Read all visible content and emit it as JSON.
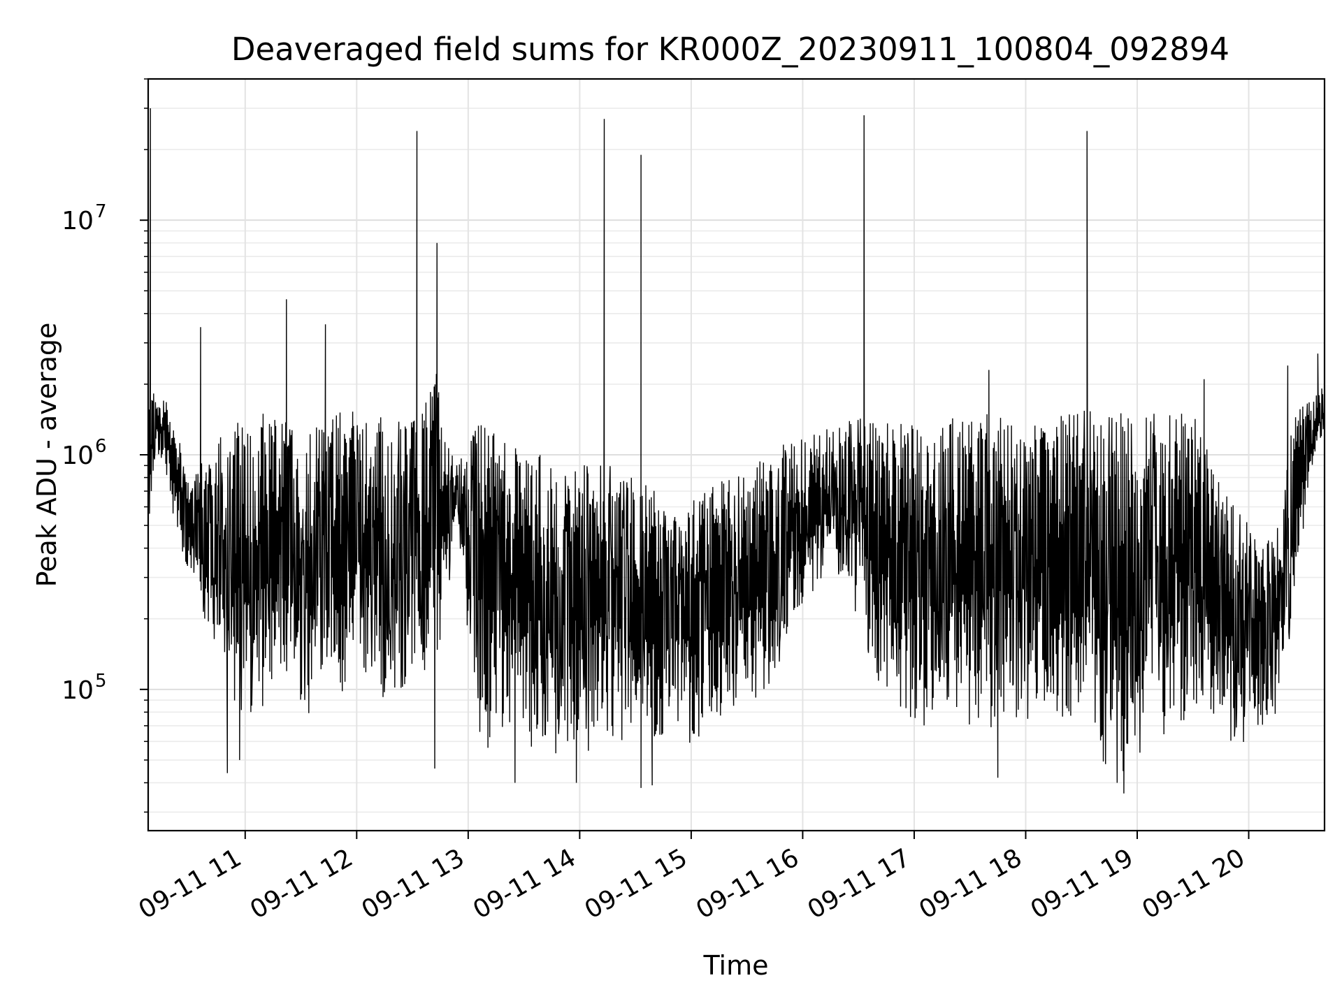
{
  "chart_data": {
    "type": "line",
    "title": "Deaveraged field sums for KR000Z_20230911_100804_092894",
    "xlabel": "Time",
    "ylabel": "Peak ADU - average",
    "x_tick_labels": [
      "09-11 11",
      "09-11 12",
      "09-11 13",
      "09-11 14",
      "09-11 15",
      "09-11 16",
      "09-11 17",
      "09-11 18",
      "09-11 19",
      "09-11 20"
    ],
    "x_ticks_hours": [
      11,
      12,
      13,
      14,
      15,
      16,
      17,
      18,
      19,
      20
    ],
    "y_tick_labels": [
      {
        "base": "10",
        "exp": "5",
        "value": 100000
      },
      {
        "base": "10",
        "exp": "6",
        "value": 1000000
      },
      {
        "base": "10",
        "exp": "7",
        "value": 10000000
      }
    ],
    "x_range_hours": [
      10.13,
      20.68
    ],
    "y_range": [
      25000,
      40000000
    ],
    "y_scale": "log",
    "grid": true,
    "line_color": "#000000",
    "series": [
      {
        "x": [
          10.13,
          10.2,
          10.3,
          10.4,
          10.5,
          10.6,
          10.7,
          10.8,
          10.9,
          11.0,
          11.1,
          11.2,
          11.3,
          11.4,
          11.5,
          11.6,
          11.7,
          11.8,
          11.9,
          12.0,
          12.1,
          12.2,
          12.3,
          12.4,
          12.5,
          12.6,
          12.7,
          12.8,
          12.9,
          13.0,
          13.1,
          13.2,
          13.3,
          13.4,
          13.5,
          13.6,
          13.7,
          13.8,
          13.9,
          14.0,
          14.1,
          14.2,
          14.3,
          14.4,
          14.5,
          14.6,
          14.7,
          14.8,
          14.9,
          15.0,
          15.1,
          15.2,
          15.3,
          15.4,
          15.5,
          15.6,
          15.7,
          15.8,
          15.9,
          16.0,
          16.1,
          16.2,
          16.3,
          16.4,
          16.5,
          16.6,
          16.7,
          16.8,
          16.9,
          17.0,
          17.1,
          17.2,
          17.3,
          17.4,
          17.5,
          17.6,
          17.7,
          17.8,
          17.9,
          18.0,
          18.1,
          18.2,
          18.3,
          18.4,
          18.5,
          18.6,
          18.7,
          18.8,
          18.9,
          19.0,
          19.1,
          19.2,
          19.3,
          19.4,
          19.5,
          19.6,
          19.7,
          19.8,
          19.9,
          20.0,
          20.1,
          20.2,
          20.3,
          20.4,
          20.5,
          20.6,
          20.68
        ],
        "lo": [
          400000,
          1000000,
          800000,
          400000,
          250000,
          200000,
          150000,
          90000,
          80000,
          80000,
          75000,
          80000,
          85000,
          80000,
          80000,
          75000,
          80000,
          85000,
          90000,
          120000,
          90000,
          85000,
          80000,
          90000,
          120000,
          100000,
          120000,
          200000,
          600000,
          150000,
          60000,
          55000,
          60000,
          55000,
          50000,
          55000,
          50000,
          50000,
          55000,
          52000,
          55000,
          60000,
          55000,
          52000,
          50000,
          48000,
          50000,
          55000,
          60000,
          55000,
          60000,
          65000,
          70000,
          75000,
          80000,
          90000,
          100000,
          130000,
          160000,
          200000,
          250000,
          300000,
          300000,
          250000,
          200000,
          120000,
          90000,
          80000,
          70000,
          65000,
          70000,
          80000,
          90000,
          75000,
          70000,
          65000,
          60000,
          65000,
          70000,
          70000,
          75000,
          80000,
          70000,
          60000,
          55000,
          50000,
          48000,
          45000,
          42000,
          45000,
          50000,
          55000,
          60000,
          65000,
          75000,
          85000,
          70000,
          60000,
          55000,
          55000,
          60000,
          70000,
          90000,
          200000,
          500000,
          1000000,
          1200000
        ],
        "hi": [
          1800000,
          1900000,
          1700000,
          1200000,
          800000,
          1000000,
          900000,
          1300000,
          1400000,
          1450000,
          1500000,
          1500000,
          1450000,
          1400000,
          1450000,
          1400000,
          1500000,
          1550000,
          1600000,
          1600000,
          1550000,
          1500000,
          1450000,
          1500000,
          1600000,
          1500000,
          2500000,
          1200000,
          900000,
          1100000,
          1400000,
          1300000,
          1200000,
          1100000,
          1050000,
          1000000,
          1000000,
          950000,
          900000,
          900000,
          950000,
          1000000,
          900000,
          850000,
          800000,
          750000,
          700000,
          650000,
          600000,
          650000,
          700000,
          750000,
          800000,
          850000,
          900000,
          950000,
          1000000,
          1100000,
          1150000,
          1200000,
          1250000,
          1300000,
          1350000,
          1400000,
          1450000,
          1450000,
          1450000,
          1450000,
          1450000,
          1400000,
          1400000,
          1450000,
          1450000,
          1450000,
          1450000,
          1500000,
          1500000,
          1500000,
          1500000,
          1550000,
          1550000,
          1550000,
          1550000,
          1550000,
          1550000,
          1550000,
          1550000,
          1550000,
          1500000,
          1500000,
          1500000,
          1500000,
          1500000,
          1500000,
          1500000,
          1200000,
          900000,
          700000,
          600000,
          500000,
          400000,
          450000,
          600000,
          1500000,
          1700000,
          1800000,
          2000000
        ],
        "spikes": [
          {
            "x": 10.15,
            "y": 30000000
          },
          {
            "x": 10.6,
            "y": 3500000
          },
          {
            "x": 11.37,
            "y": 4600000
          },
          {
            "x": 11.72,
            "y": 3600000
          },
          {
            "x": 12.54,
            "y": 24000000
          },
          {
            "x": 12.72,
            "y": 8000000
          },
          {
            "x": 14.22,
            "y": 27000000
          },
          {
            "x": 14.55,
            "y": 19000000
          },
          {
            "x": 16.55,
            "y": 28000000
          },
          {
            "x": 17.67,
            "y": 2300000
          },
          {
            "x": 18.55,
            "y": 24000000
          },
          {
            "x": 19.6,
            "y": 2100000
          },
          {
            "x": 20.35,
            "y": 2400000
          },
          {
            "x": 20.62,
            "y": 2700000
          }
        ],
        "dips": [
          {
            "x": 10.84,
            "y": 44000
          },
          {
            "x": 10.95,
            "y": 50000
          },
          {
            "x": 12.7,
            "y": 46000
          },
          {
            "x": 13.42,
            "y": 40000
          },
          {
            "x": 13.97,
            "y": 40000
          },
          {
            "x": 14.55,
            "y": 38000
          },
          {
            "x": 14.65,
            "y": 39000
          },
          {
            "x": 17.75,
            "y": 42000
          },
          {
            "x": 18.88,
            "y": 36000
          },
          {
            "x": 18.82,
            "y": 40000
          }
        ]
      }
    ]
  }
}
